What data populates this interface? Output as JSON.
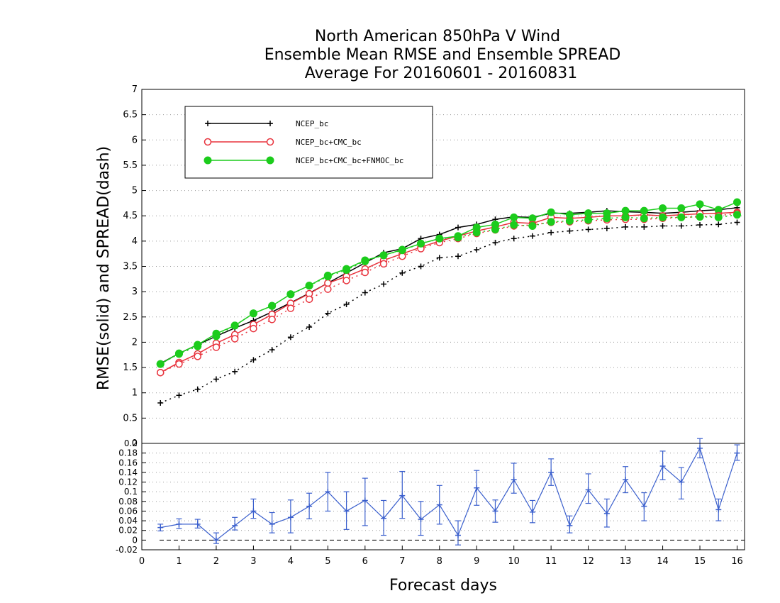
{
  "title_lines": [
    "North American 850hPa V Wind",
    "Ensemble Mean RMSE and Ensemble SPREAD",
    "Average For 20160601 - 20160831"
  ],
  "colors": {
    "ncep": "#000000",
    "cmc": "#e8323c",
    "fnmoc": "#1ccc1c",
    "diff": "#3a5fcd",
    "grid": "#9a9a9a"
  },
  "chart_data": [
    {
      "type": "line",
      "ylabel": "RMSE(solid)  and  SPREAD(dash)",
      "ylim": [
        0,
        7
      ],
      "yticks": [
        "0.5",
        "1",
        "1.5",
        "2",
        "2.5",
        "3",
        "3.5",
        "4",
        "4.5",
        "5",
        "5.5",
        "6",
        "6.5",
        "7"
      ],
      "xlim": [
        0,
        16.2
      ],
      "grid": true,
      "legend_position": "top-left",
      "x": [
        0.5,
        1,
        1.5,
        2,
        2.5,
        3,
        3.5,
        4,
        4.5,
        5,
        5.5,
        6,
        6.5,
        7,
        7.5,
        8,
        8.5,
        9,
        9.5,
        10,
        10.5,
        11,
        11.5,
        12,
        12.5,
        13,
        13.5,
        14,
        14.5,
        15,
        15.5,
        16
      ],
      "series": [
        {
          "name": "NCEP_bc",
          "style": "solid",
          "marker": "plus",
          "color": "#000000",
          "values": [
            1.58,
            1.78,
            1.95,
            2.12,
            2.28,
            2.43,
            2.6,
            2.78,
            2.97,
            3.17,
            3.37,
            3.57,
            3.77,
            3.85,
            4.05,
            4.13,
            4.27,
            4.33,
            4.43,
            4.48,
            4.47,
            4.55,
            4.55,
            4.57,
            4.6,
            4.58,
            4.57,
            4.55,
            4.57,
            4.6,
            4.62,
            4.66
          ]
        },
        {
          "name": "NCEP_bc+CMC_bc",
          "style": "solid",
          "marker": "open-circle",
          "color": "#e8323c",
          "values": [
            1.4,
            1.6,
            1.77,
            1.98,
            2.15,
            2.35,
            2.55,
            2.77,
            2.96,
            3.17,
            3.3,
            3.45,
            3.62,
            3.75,
            3.88,
            4.0,
            4.1,
            4.2,
            4.28,
            4.37,
            4.35,
            4.47,
            4.45,
            4.47,
            4.5,
            4.5,
            4.52,
            4.5,
            4.52,
            4.54,
            4.55,
            4.57
          ]
        },
        {
          "name": "NCEP_bc+CMC_bc+FNMOC_bc",
          "style": "solid",
          "marker": "filled-circle",
          "color": "#1ccc1c",
          "values": [
            1.57,
            1.78,
            1.95,
            2.17,
            2.33,
            2.57,
            2.72,
            2.95,
            3.12,
            3.32,
            3.45,
            3.62,
            3.72,
            3.83,
            3.95,
            4.05,
            4.1,
            4.27,
            4.33,
            4.47,
            4.45,
            4.57,
            4.52,
            4.55,
            4.55,
            4.6,
            4.6,
            4.65,
            4.65,
            4.73,
            4.62,
            4.77
          ]
        },
        {
          "name": "",
          "style": "dash",
          "marker": "plus",
          "color": "#000000",
          "values": [
            0.8,
            0.95,
            1.07,
            1.27,
            1.42,
            1.65,
            1.85,
            2.1,
            2.3,
            2.57,
            2.75,
            2.98,
            3.15,
            3.37,
            3.5,
            3.67,
            3.7,
            3.83,
            3.97,
            4.05,
            4.1,
            4.17,
            4.2,
            4.23,
            4.25,
            4.28,
            4.28,
            4.3,
            4.3,
            4.32,
            4.33,
            4.37
          ]
        },
        {
          "name": "",
          "style": "dash",
          "marker": "open-circle",
          "color": "#e8323c",
          "values": [
            1.4,
            1.57,
            1.72,
            1.9,
            2.07,
            2.27,
            2.45,
            2.67,
            2.85,
            3.05,
            3.22,
            3.38,
            3.55,
            3.7,
            3.85,
            3.97,
            4.05,
            4.15,
            4.22,
            4.3,
            4.32,
            4.37,
            4.38,
            4.4,
            4.42,
            4.43,
            4.43,
            4.45,
            4.47,
            4.48,
            4.5,
            4.55
          ]
        },
        {
          "name": "",
          "style": "dash",
          "marker": "filled-circle",
          "color": "#1ccc1c",
          "values": [
            1.57,
            1.77,
            1.92,
            2.12,
            2.33,
            2.57,
            2.72,
            2.95,
            3.12,
            3.3,
            3.43,
            3.6,
            3.72,
            3.82,
            3.95,
            4.05,
            4.07,
            4.17,
            4.23,
            4.32,
            4.3,
            4.38,
            4.4,
            4.42,
            4.45,
            4.47,
            4.45,
            4.47,
            4.47,
            4.48,
            4.47,
            4.52
          ]
        }
      ]
    },
    {
      "type": "line",
      "ylim": [
        -0.02,
        0.2
      ],
      "yticks": [
        "-0.02",
        "0",
        "0.02",
        "0.04",
        "0.06",
        "0.08",
        "0.1",
        "0.12",
        "0.14",
        "0.16",
        "0.18",
        "0.2"
      ],
      "xlim": [
        0,
        16.2
      ],
      "xticks": [
        "0",
        "1",
        "2",
        "3",
        "4",
        "5",
        "6",
        "7",
        "8",
        "9",
        "10",
        "11",
        "12",
        "13",
        "14",
        "15",
        "16"
      ],
      "xlabel": "Forecast days",
      "grid": true,
      "zero_line": "dash",
      "series": [
        {
          "name": "",
          "color": "#3a5fcd",
          "marker": "plus",
          "errorbars": true,
          "x": [
            0.5,
            1,
            1.5,
            2,
            2.5,
            3,
            3.5,
            4,
            4.5,
            5,
            5.5,
            6,
            6.5,
            7,
            7.5,
            8,
            8.5,
            9,
            9.5,
            10,
            10.5,
            11,
            11.5,
            12,
            12.5,
            13,
            13.5,
            14,
            14.5,
            15,
            15.5,
            16
          ],
          "values": [
            0.026,
            0.033,
            0.033,
            0.0,
            0.03,
            0.06,
            0.033,
            0.047,
            0.07,
            0.1,
            0.06,
            0.082,
            0.045,
            0.092,
            0.043,
            0.073,
            0.01,
            0.108,
            0.06,
            0.125,
            0.058,
            0.14,
            0.03,
            0.104,
            0.055,
            0.125,
            0.07,
            0.153,
            0.12,
            0.19,
            0.063,
            0.18
          ],
          "lower": [
            0.019,
            0.024,
            0.025,
            -0.007,
            0.021,
            0.045,
            0.015,
            0.015,
            0.044,
            0.06,
            0.022,
            0.03,
            0.01,
            0.045,
            0.01,
            0.033,
            -0.01,
            0.072,
            0.037,
            0.097,
            0.036,
            0.113,
            0.015,
            0.076,
            0.027,
            0.098,
            0.04,
            0.125,
            0.085,
            0.17,
            0.04,
            0.165
          ],
          "upper": [
            0.033,
            0.044,
            0.043,
            0.015,
            0.047,
            0.085,
            0.057,
            0.083,
            0.097,
            0.14,
            0.1,
            0.128,
            0.082,
            0.142,
            0.08,
            0.113,
            0.04,
            0.144,
            0.083,
            0.159,
            0.082,
            0.168,
            0.05,
            0.137,
            0.085,
            0.152,
            0.098,
            0.184,
            0.15,
            0.21,
            0.085,
            0.197
          ]
        }
      ]
    }
  ]
}
